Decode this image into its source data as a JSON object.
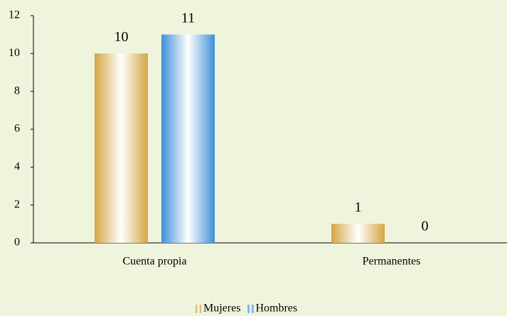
{
  "chart_data": {
    "type": "bar",
    "categories": [
      "Cuenta propia",
      "Permanentes"
    ],
    "series": [
      {
        "name": "Mujeres",
        "color": "#d4a542",
        "values": [
          10,
          1
        ]
      },
      {
        "name": "Hombres",
        "color": "#3f8fd8",
        "values": [
          11,
          0
        ]
      }
    ],
    "ylim": [
      0,
      12
    ],
    "yticks": [
      0,
      2,
      4,
      6,
      8,
      10,
      12
    ],
    "grid": false,
    "legend": "bottom"
  }
}
